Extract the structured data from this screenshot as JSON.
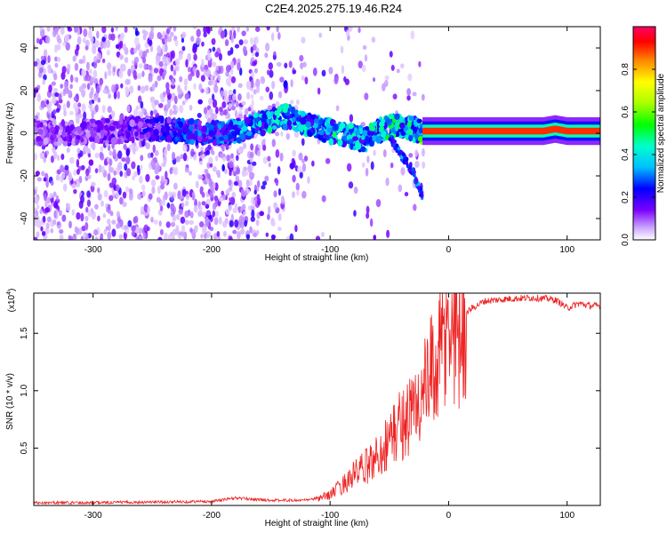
{
  "page": {
    "title": "C2E4.2025.275.19.46.R24"
  },
  "chart_data": [
    {
      "type": "heatmap",
      "xlabel": "Height of straight line (km)",
      "ylabel": "Frequency (Hz)",
      "xlim": [
        -350,
        128
      ],
      "ylim": [
        -50,
        50
      ],
      "xticks": [
        "-300",
        "-200",
        "-100",
        "0",
        "100"
      ],
      "xtick_values": [
        -300,
        -200,
        -100,
        0,
        100
      ],
      "yticks": [
        "-40",
        "-20",
        "0",
        "20",
        "40"
      ],
      "ytick_values": [
        -40,
        -20,
        0,
        20,
        40
      ],
      "colorbar": {
        "label": "Normalized spectral amplitude",
        "ticks": [
          "0.0",
          "0.2",
          "0.4",
          "0.6",
          "0.8"
        ],
        "tick_values": [
          0.0,
          0.2,
          0.4,
          0.6,
          0.8
        ],
        "range": [
          0,
          1
        ]
      },
      "ridge": {
        "x": [
          -350,
          -320,
          -300,
          -280,
          -260,
          -240,
          -220,
          -200,
          -180,
          -160,
          -150,
          -140,
          -130,
          -120,
          -110,
          -100,
          -90,
          -80,
          -70,
          -60,
          -50,
          -40,
          -30,
          -25,
          -20,
          0,
          20,
          50,
          80,
          90,
          100,
          128
        ],
        "y": [
          0,
          0,
          1,
          1,
          2,
          2,
          1,
          0,
          1,
          4,
          6,
          8,
          7,
          4,
          2,
          1,
          0,
          -2,
          -3,
          1,
          3,
          4,
          2,
          1,
          1,
          1,
          1,
          1,
          1,
          2,
          1,
          1
        ],
        "amplitude": [
          0.12,
          0.15,
          0.15,
          0.18,
          0.2,
          0.25,
          0.3,
          0.3,
          0.35,
          0.4,
          0.45,
          0.45,
          0.4,
          0.42,
          0.45,
          0.45,
          0.45,
          0.42,
          0.4,
          0.5,
          0.5,
          0.5,
          0.45,
          0.4,
          0.9,
          0.9,
          0.92,
          0.92,
          0.9,
          0.95,
          0.9,
          0.85
        ]
      },
      "branch": {
        "x": [
          -50,
          -40,
          -30,
          -26,
          -22
        ],
        "y": [
          -2,
          -10,
          -18,
          -24,
          -30
        ]
      }
    },
    {
      "type": "line",
      "xlabel": "Height of straight line (km)",
      "ylabel": "SNR (10 * v/v)",
      "scale_label_prefix": "(x10",
      "scale_label_exp": "4",
      "scale_label_suffix": ")",
      "xlim": [
        -350,
        128
      ],
      "ylim": [
        0,
        1.85
      ],
      "xticks": [
        "-300",
        "-200",
        "-100",
        "0",
        "100"
      ],
      "xtick_values": [
        -300,
        -200,
        -100,
        0,
        100
      ],
      "yticks": [
        "0.5",
        "1.0",
        "1.5"
      ],
      "ytick_values": [
        0.5,
        1.0,
        1.5
      ],
      "color": "#ee2222",
      "series": [
        {
          "x": [
            -350,
            -300,
            -250,
            -200,
            -180,
            -150,
            -120,
            -110,
            -100,
            -90,
            -80,
            -70,
            -60,
            -50,
            -40,
            -30,
            -20,
            -10,
            0,
            10,
            20,
            30,
            50,
            70,
            85,
            90,
            95,
            100,
            110,
            120,
            128
          ],
          "y": [
            0.02,
            0.02,
            0.025,
            0.03,
            0.06,
            0.04,
            0.04,
            0.06,
            0.1,
            0.18,
            0.28,
            0.35,
            0.45,
            0.6,
            0.75,
            0.85,
            1.05,
            1.3,
            1.55,
            1.65,
            1.72,
            1.78,
            1.8,
            1.81,
            1.8,
            1.79,
            1.76,
            1.72,
            1.76,
            1.74,
            1.74
          ]
        }
      ]
    }
  ]
}
